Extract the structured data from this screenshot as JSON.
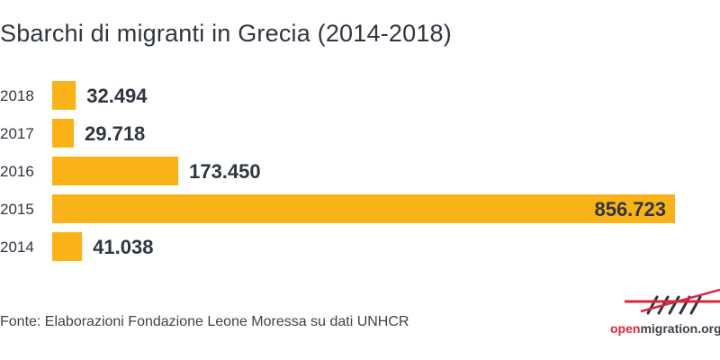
{
  "title": "Sbarchi di migranti in Grecia (2014-2018)",
  "source": "Fonte: Elaborazioni Fondazione Leone Moressa su dati UNHCR",
  "logo": {
    "prefix": "open",
    "suffix": "migration.org",
    "icon": "openmigration-logo-icon"
  },
  "colors": {
    "bar": "#f9b318",
    "text": "#2f3640",
    "accent": "#d7263d"
  },
  "chart_data": {
    "type": "bar",
    "orientation": "horizontal",
    "categories": [
      "2018",
      "2017",
      "2016",
      "2015",
      "2014"
    ],
    "values": [
      32494,
      29718,
      173450,
      856723,
      41038
    ],
    "value_labels": [
      "32.494",
      "29.718",
      "173.450",
      "856.723",
      "41.038"
    ],
    "title": "Sbarchi di migranti in Grecia (2014-2018)",
    "xlabel": "",
    "ylabel": "",
    "xlim": [
      0,
      856723
    ],
    "grid": false,
    "legend": "none"
  }
}
